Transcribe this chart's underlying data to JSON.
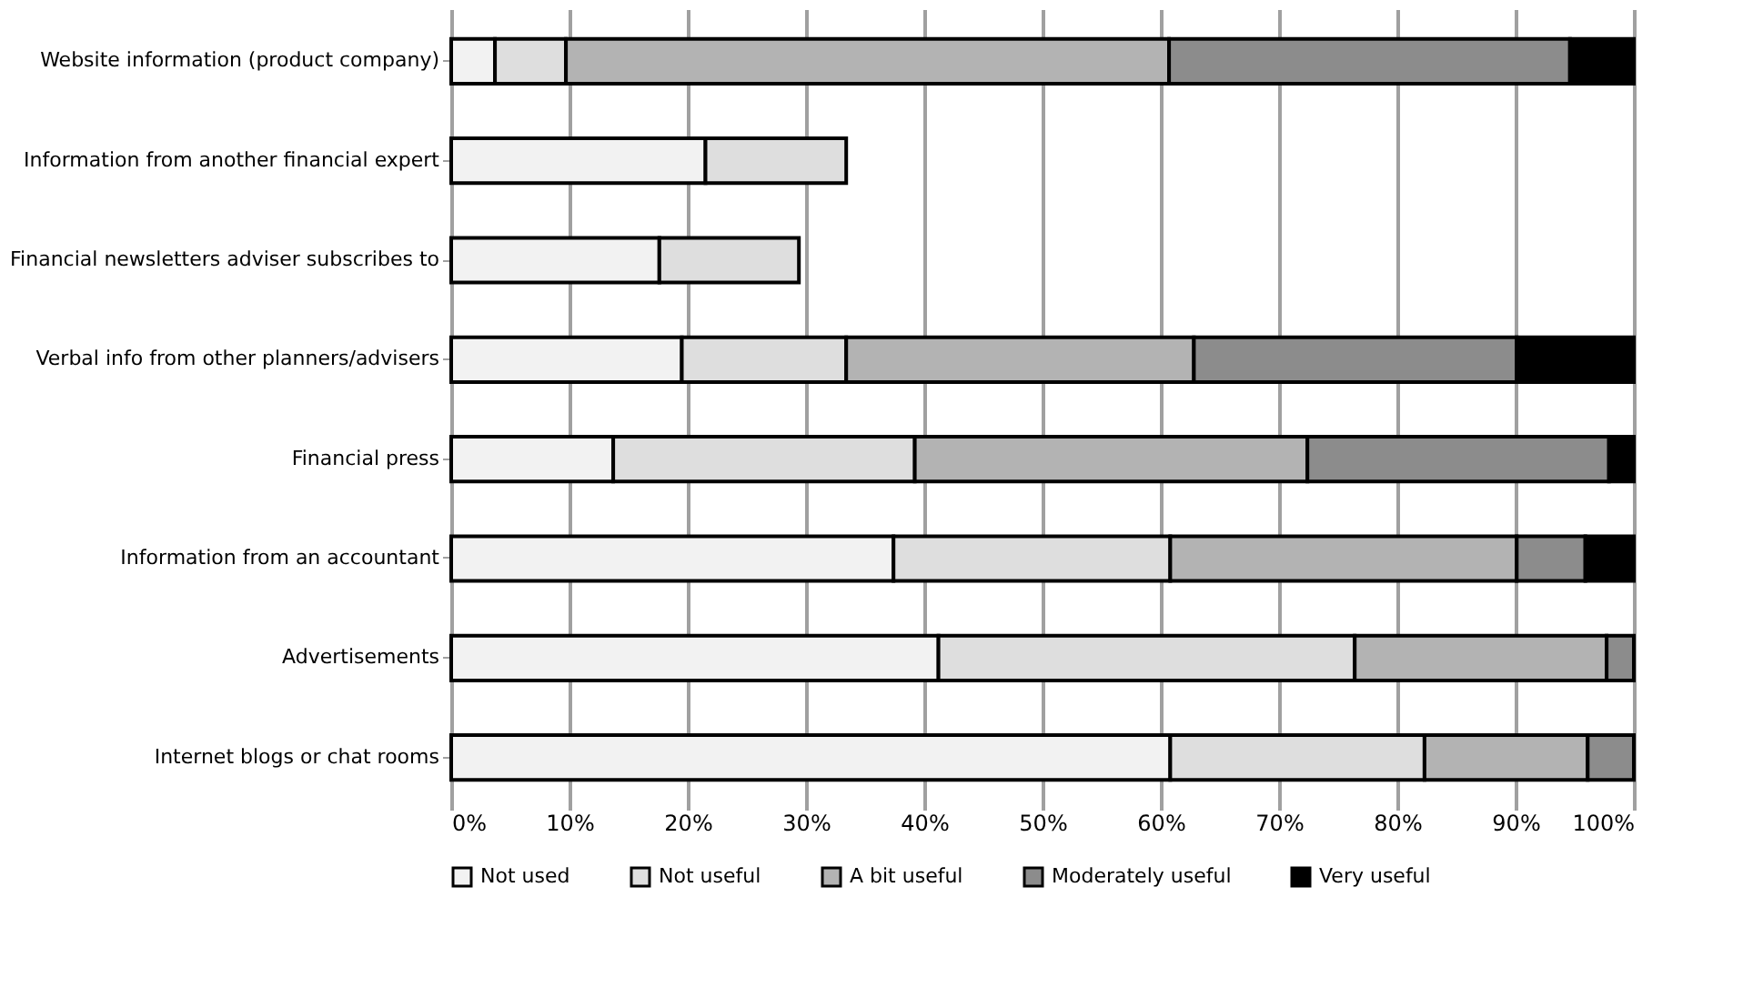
{
  "chart_data": {
    "type": "bar",
    "orientation": "horizontal",
    "stacked": true,
    "categories": [
      "Website information (product company)",
      "Information from another financial expert",
      "Financial newsletters adviser subscribes to",
      "Verbal info from other planners/advisers",
      "Financial press",
      "Information from an accountant",
      "Advertisements",
      "Internet blogs or chat rooms"
    ],
    "series": [
      {
        "name": "Not used",
        "color": "#f2f2f2",
        "values": [
          3.7,
          21.5,
          17.6,
          19.5,
          13.7,
          37.4,
          41.2,
          60.8
        ]
      },
      {
        "name": "Not useful",
        "color": "#dedede",
        "values": [
          6.0,
          11.9,
          11.8,
          13.9,
          25.5,
          23.4,
          35.2,
          21.5
        ]
      },
      {
        "name": "A bit useful",
        "color": "#b3b3b3",
        "values": [
          51.0,
          null,
          null,
          29.4,
          33.2,
          29.3,
          21.3,
          13.8
        ]
      },
      {
        "name": "Moderately useful",
        "color": "#8c8c8c",
        "values": [
          33.9,
          null,
          null,
          27.3,
          25.5,
          5.8,
          2.3,
          3.9
        ]
      },
      {
        "name": "Very useful",
        "color": "#000000",
        "values": [
          5.4,
          null,
          null,
          9.9,
          2.1,
          4.1,
          0,
          0
        ]
      }
    ],
    "xlim": [
      0,
      100
    ],
    "xticks": [
      {
        "value": 0,
        "label": "0%"
      },
      {
        "value": 10,
        "label": "10%"
      },
      {
        "value": 20,
        "label": "20%"
      },
      {
        "value": 30,
        "label": "30%"
      },
      {
        "value": 40,
        "label": "40%"
      },
      {
        "value": 50,
        "label": "50%"
      },
      {
        "value": 60,
        "label": "60%"
      },
      {
        "value": 70,
        "label": "70%"
      },
      {
        "value": 80,
        "label": "80%"
      },
      {
        "value": 90,
        "label": "90%"
      },
      {
        "value": 100,
        "label": "100%"
      }
    ],
    "grid": "x",
    "legend": "bottom"
  }
}
